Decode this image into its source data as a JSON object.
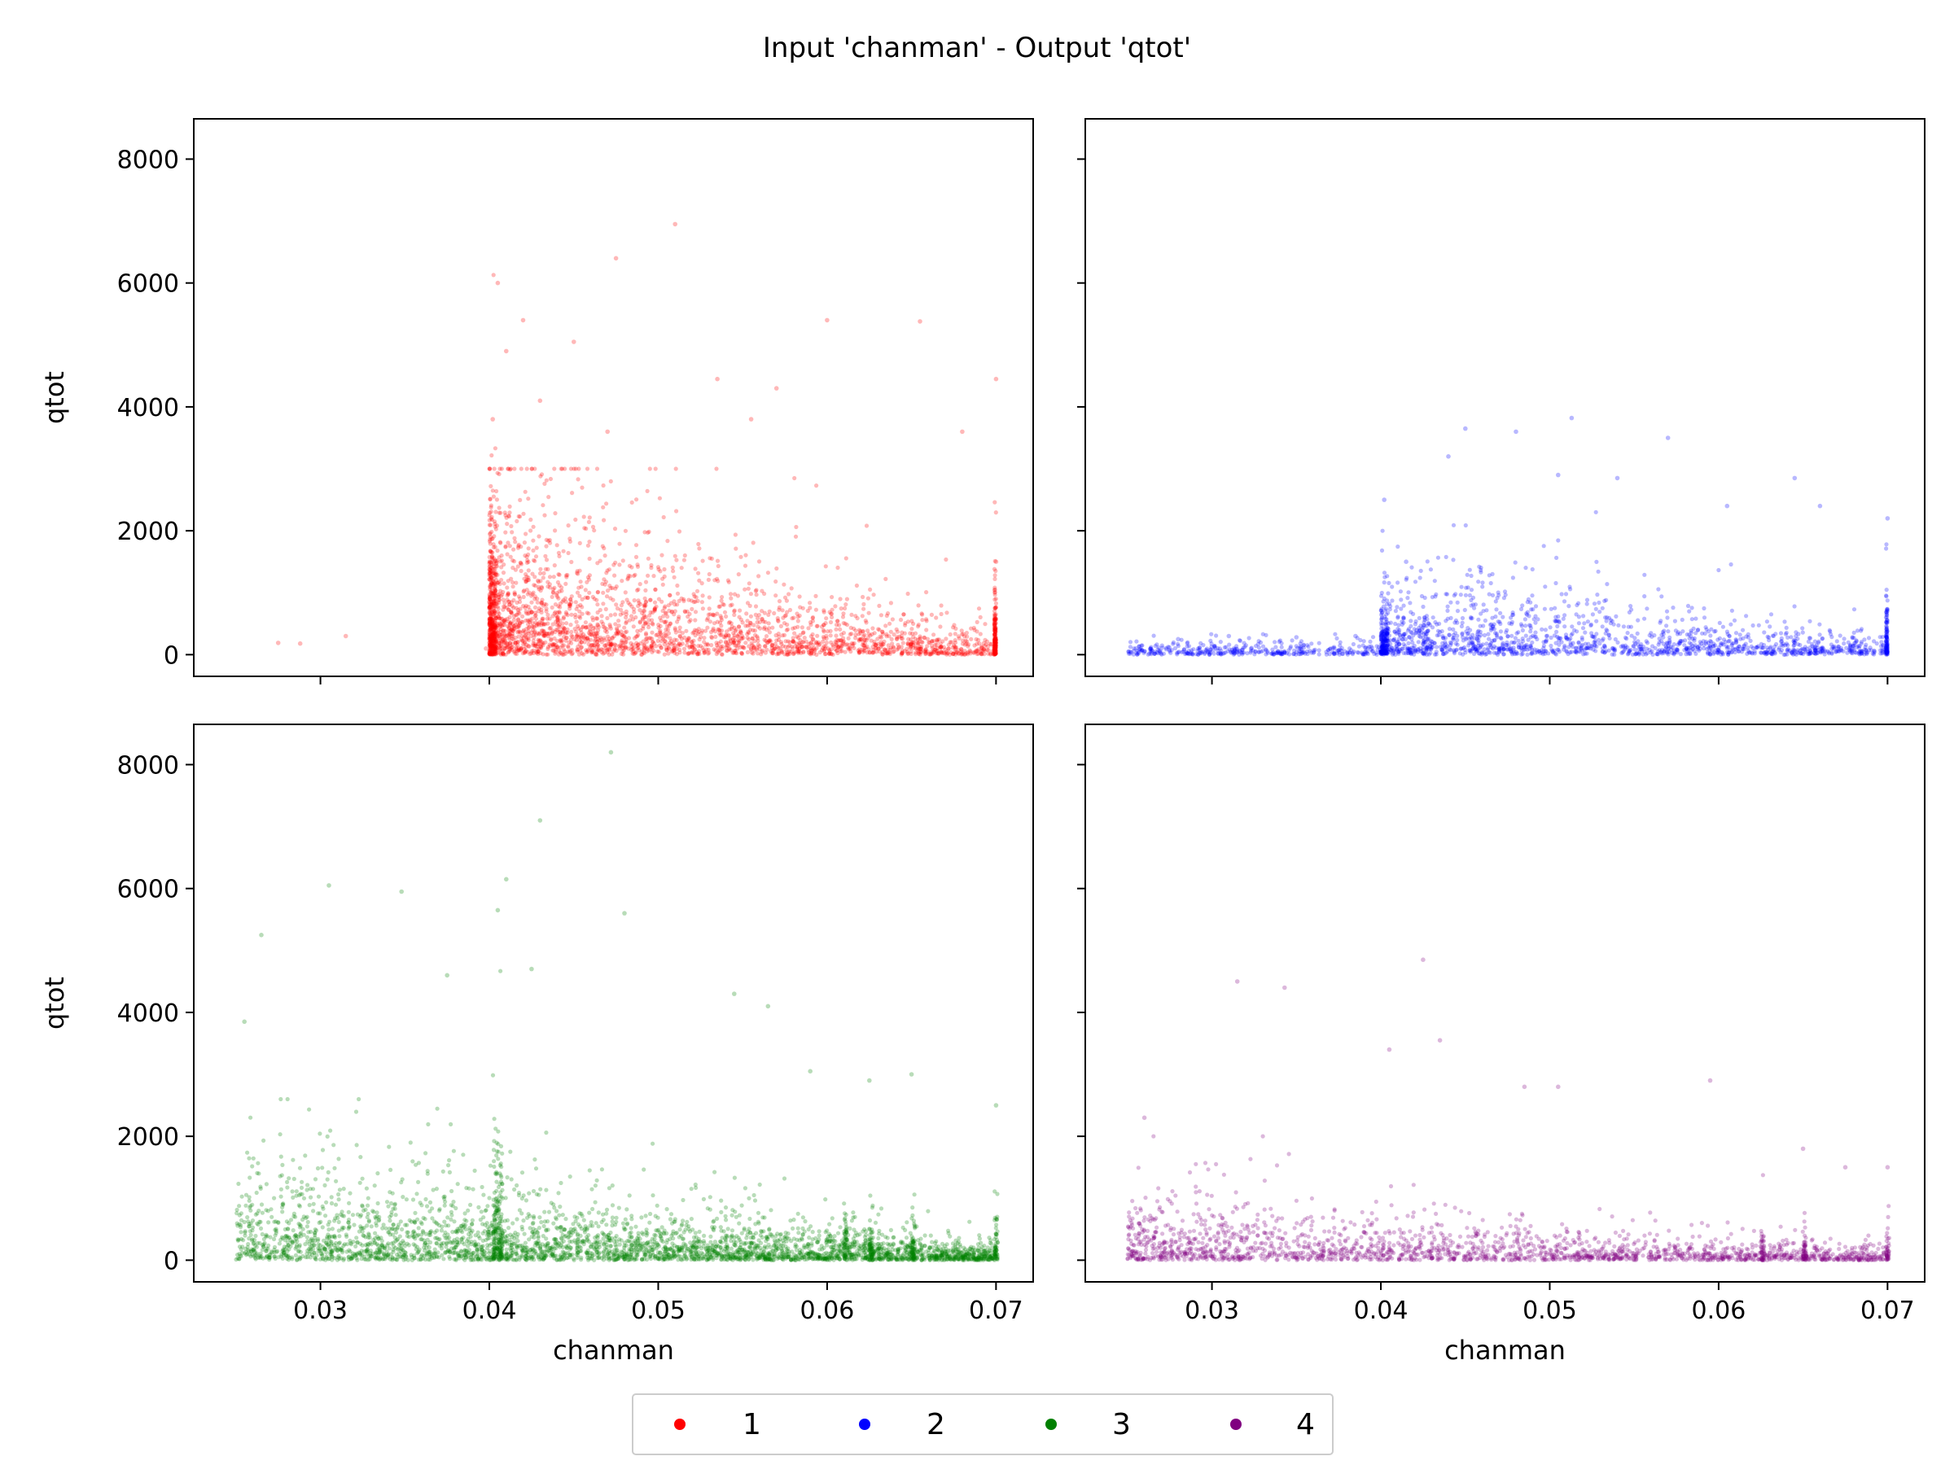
{
  "figure": {
    "title": "Input 'chanman' - Output 'qtot'"
  },
  "legend": {
    "placement": "bottom-center",
    "items": [
      {
        "label": "1",
        "color": "#ff0000"
      },
      {
        "label": "2",
        "color": "#0000ff"
      },
      {
        "label": "3",
        "color": "#008000"
      },
      {
        "label": "4",
        "color": "#800080"
      }
    ]
  },
  "chart_data": [
    {
      "type": "scatter",
      "series_label": "1",
      "color": "#ff0000",
      "xlabel": "",
      "ylabel": "qtot",
      "xlim": [
        0.0225,
        0.0722
      ],
      "ylim": [
        -350,
        8650
      ],
      "xticks": [
        0.03,
        0.04,
        0.05,
        0.06,
        0.07
      ],
      "xticklabels": [
        "",
        "",
        "",
        "",
        ""
      ],
      "yticks": [
        0,
        2000,
        4000,
        6000,
        8000
      ],
      "yticklabels": [
        "0",
        "2000",
        "4000",
        "6000",
        "8000"
      ],
      "grid": false,
      "description_points": {
        "x": [
          0.0275,
          0.0288,
          0.0315,
          0.0398,
          0.0402,
          0.0405,
          0.041,
          0.042,
          0.043,
          0.045,
          0.047,
          0.0475,
          0.051,
          0.0535,
          0.0555,
          0.057,
          0.06,
          0.0655,
          0.068,
          0.07,
          0.07
        ],
        "y": [
          190,
          180,
          300,
          100,
          3800,
          6000,
          4900,
          5400,
          4100,
          5050,
          3600,
          6400,
          6950,
          4450,
          3800,
          4300,
          5400,
          5380,
          3600,
          4450,
          1500
        ]
      }
    },
    {
      "type": "scatter",
      "series_label": "2",
      "color": "#0000ff",
      "xlabel": "",
      "ylabel": "",
      "xlim": [
        0.0225,
        0.0722
      ],
      "ylim": [
        -350,
        8650
      ],
      "xticks": [
        0.03,
        0.04,
        0.05,
        0.06,
        0.07
      ],
      "xticklabels": [
        "",
        "",
        "",
        "",
        ""
      ],
      "yticks": [
        0,
        2000,
        4000,
        6000,
        8000
      ],
      "yticklabels": [
        "",
        "",
        "",
        "",
        ""
      ],
      "grid": false,
      "description_points": {
        "x": [
          0.0255,
          0.028,
          0.031,
          0.035,
          0.0385,
          0.0402,
          0.0415,
          0.044,
          0.045,
          0.048,
          0.0505,
          0.0513,
          0.054,
          0.057,
          0.0605,
          0.0645,
          0.066,
          0.07
        ],
        "y": [
          100,
          250,
          300,
          280,
          300,
          2500,
          1500,
          3200,
          3650,
          3600,
          2900,
          3820,
          2850,
          3500,
          2400,
          2850,
          2400,
          2200
        ]
      }
    },
    {
      "type": "scatter",
      "series_label": "3",
      "color": "#008000",
      "xlabel": "chanman",
      "ylabel": "qtot",
      "xlim": [
        0.0225,
        0.0722
      ],
      "ylim": [
        -350,
        8650
      ],
      "xticks": [
        0.03,
        0.04,
        0.05,
        0.06,
        0.07
      ],
      "xticklabels": [
        "0.03",
        "0.04",
        "0.05",
        "0.06",
        "0.07"
      ],
      "yticks": [
        0,
        2000,
        4000,
        6000,
        8000
      ],
      "yticklabels": [
        "0",
        "2000",
        "4000",
        "6000",
        "8000"
      ],
      "grid": false,
      "description_points": {
        "x": [
          0.0255,
          0.0265,
          0.0305,
          0.0348,
          0.0375,
          0.0405,
          0.041,
          0.0425,
          0.043,
          0.0472,
          0.048,
          0.0545,
          0.0565,
          0.059,
          0.0625,
          0.065,
          0.07
        ],
        "y": [
          3850,
          5250,
          6050,
          5950,
          4600,
          5650,
          6150,
          4700,
          7100,
          8200,
          5600,
          4300,
          4100,
          3050,
          2900,
          3000,
          2500
        ]
      }
    },
    {
      "type": "scatter",
      "series_label": "4",
      "color": "#800080",
      "xlabel": "chanman",
      "ylabel": "",
      "xlim": [
        0.0225,
        0.0722
      ],
      "ylim": [
        -350,
        8650
      ],
      "xticks": [
        0.03,
        0.04,
        0.05,
        0.06,
        0.07
      ],
      "xticklabels": [
        "0.03",
        "0.04",
        "0.05",
        "0.06",
        "0.07"
      ],
      "yticks": [
        0,
        2000,
        4000,
        6000,
        8000
      ],
      "yticklabels": [
        "",
        "",
        "",
        "",
        ""
      ],
      "grid": false,
      "description_points": {
        "x": [
          0.026,
          0.0315,
          0.0343,
          0.0405,
          0.0425,
          0.0435,
          0.0485,
          0.0505,
          0.0595,
          0.065,
          0.0675,
          0.07
        ],
        "y": [
          2300,
          4500,
          4400,
          3400,
          4850,
          3550,
          2800,
          2800,
          2900,
          1800,
          1500,
          1500
        ]
      }
    }
  ]
}
